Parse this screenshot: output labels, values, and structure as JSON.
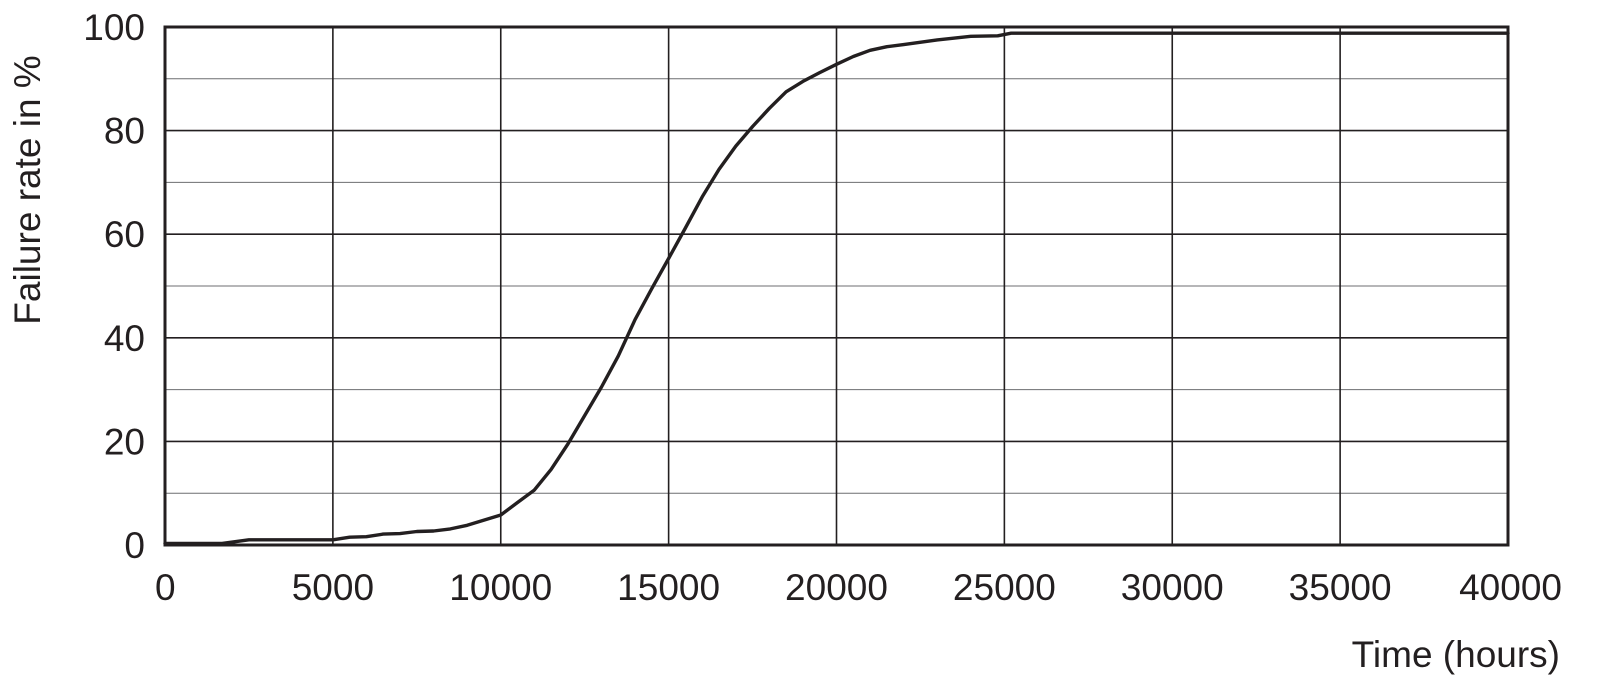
{
  "chart_data": {
    "type": "line",
    "title": "",
    "xlabel": "Time (hours)",
    "ylabel": "Failure rate in %",
    "xlim": [
      0,
      40000
    ],
    "ylim": [
      0,
      100
    ],
    "xticks": [
      0,
      5000,
      10000,
      15000,
      20000,
      25000,
      30000,
      35000,
      40000
    ],
    "yticks": [
      0,
      20,
      40,
      60,
      80,
      100
    ],
    "y_minor_gridlines": [
      10,
      30,
      50,
      70,
      90
    ],
    "x_tick_labels": [
      "0",
      "5000",
      "10000",
      "15000",
      "20000",
      "25000",
      "30000",
      "35000",
      "40000"
    ],
    "y_tick_labels": [
      "0",
      "20",
      "40",
      "60",
      "80",
      "100"
    ],
    "grid": true,
    "legend": "none",
    "colors": {
      "line": "#231f20",
      "grid": "#231f20",
      "text": "#231f20"
    },
    "series": [
      {
        "x": [
          0,
          1700,
          2500,
          5000,
          5500,
          6000,
          6500,
          7000,
          7500,
          8000,
          8500,
          9000,
          9500,
          10000,
          10500,
          11000,
          11500,
          12000,
          12500,
          13000,
          13500,
          14000,
          14500,
          15000,
          15500,
          16000,
          16500,
          17000,
          17500,
          18000,
          18500,
          19000,
          19500,
          20000,
          20500,
          21000,
          21500,
          22000,
          23000,
          24000,
          24800,
          25200,
          30000,
          35000,
          40000
        ],
        "y": [
          0.3,
          0.3,
          1.0,
          1.0,
          1.5,
          1.6,
          2.1,
          2.2,
          2.6,
          2.7,
          3.1,
          3.8,
          4.8,
          5.8,
          8.2,
          10.6,
          14.6,
          19.5,
          25.0,
          30.5,
          36.5,
          43.5,
          49.5,
          55.3,
          61.2,
          67.2,
          72.5,
          77.0,
          80.8,
          84.3,
          87.5,
          89.5,
          91.2,
          92.8,
          94.3,
          95.5,
          96.2,
          96.6,
          97.5,
          98.2,
          98.3,
          98.8,
          98.8,
          98.8,
          98.8
        ]
      }
    ]
  }
}
